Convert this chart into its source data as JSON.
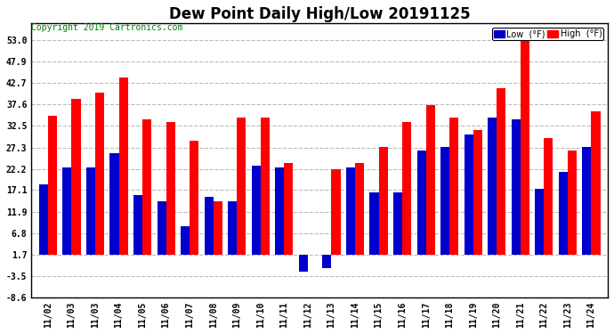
{
  "title": "Dew Point Daily High/Low 20191125",
  "copyright": "Copyright 2019 Cartronics.com",
  "x_labels": [
    "11/02",
    "11/03",
    "11/03",
    "11/04",
    "11/05",
    "11/06",
    "11/07",
    "11/08",
    "11/09",
    "11/10",
    "11/11",
    "11/12",
    "11/13",
    "11/14",
    "11/15",
    "11/16",
    "11/17",
    "11/18",
    "11/19",
    "11/20",
    "11/21",
    "11/22",
    "11/23",
    "11/24"
  ],
  "high": [
    35.0,
    39.0,
    40.5,
    44.0,
    34.0,
    33.5,
    29.0,
    14.5,
    34.5,
    34.5,
    23.5,
    1.7,
    22.0,
    23.5,
    27.5,
    33.5,
    37.5,
    34.5,
    31.5,
    41.5,
    53.0,
    29.5,
    26.5,
    36.0
  ],
  "low": [
    18.5,
    22.5,
    22.5,
    26.0,
    16.0,
    14.5,
    8.5,
    15.5,
    14.5,
    23.0,
    22.5,
    -2.5,
    -1.5,
    22.5,
    16.5,
    16.5,
    26.5,
    27.5,
    30.5,
    34.5,
    34.0,
    17.5,
    21.5,
    27.5
  ],
  "bar_color_high": "#FF0000",
  "bar_color_low": "#0000CC",
  "background_color": "#FFFFFF",
  "plot_bg_color": "#FFFFFF",
  "grid_color": "#BBBBBB",
  "ylim_min": -8.6,
  "ylim_max": 57.0,
  "baseline": 1.7,
  "yticks": [
    -8.6,
    -3.5,
    1.7,
    6.8,
    11.9,
    17.1,
    22.2,
    27.3,
    32.5,
    37.6,
    42.7,
    47.9,
    53.0
  ],
  "legend_low_label": "Low  (°F)",
  "legend_high_label": "High  (°F)",
  "title_fontsize": 12,
  "tick_fontsize": 7,
  "copyright_fontsize": 7,
  "bar_width": 0.38
}
